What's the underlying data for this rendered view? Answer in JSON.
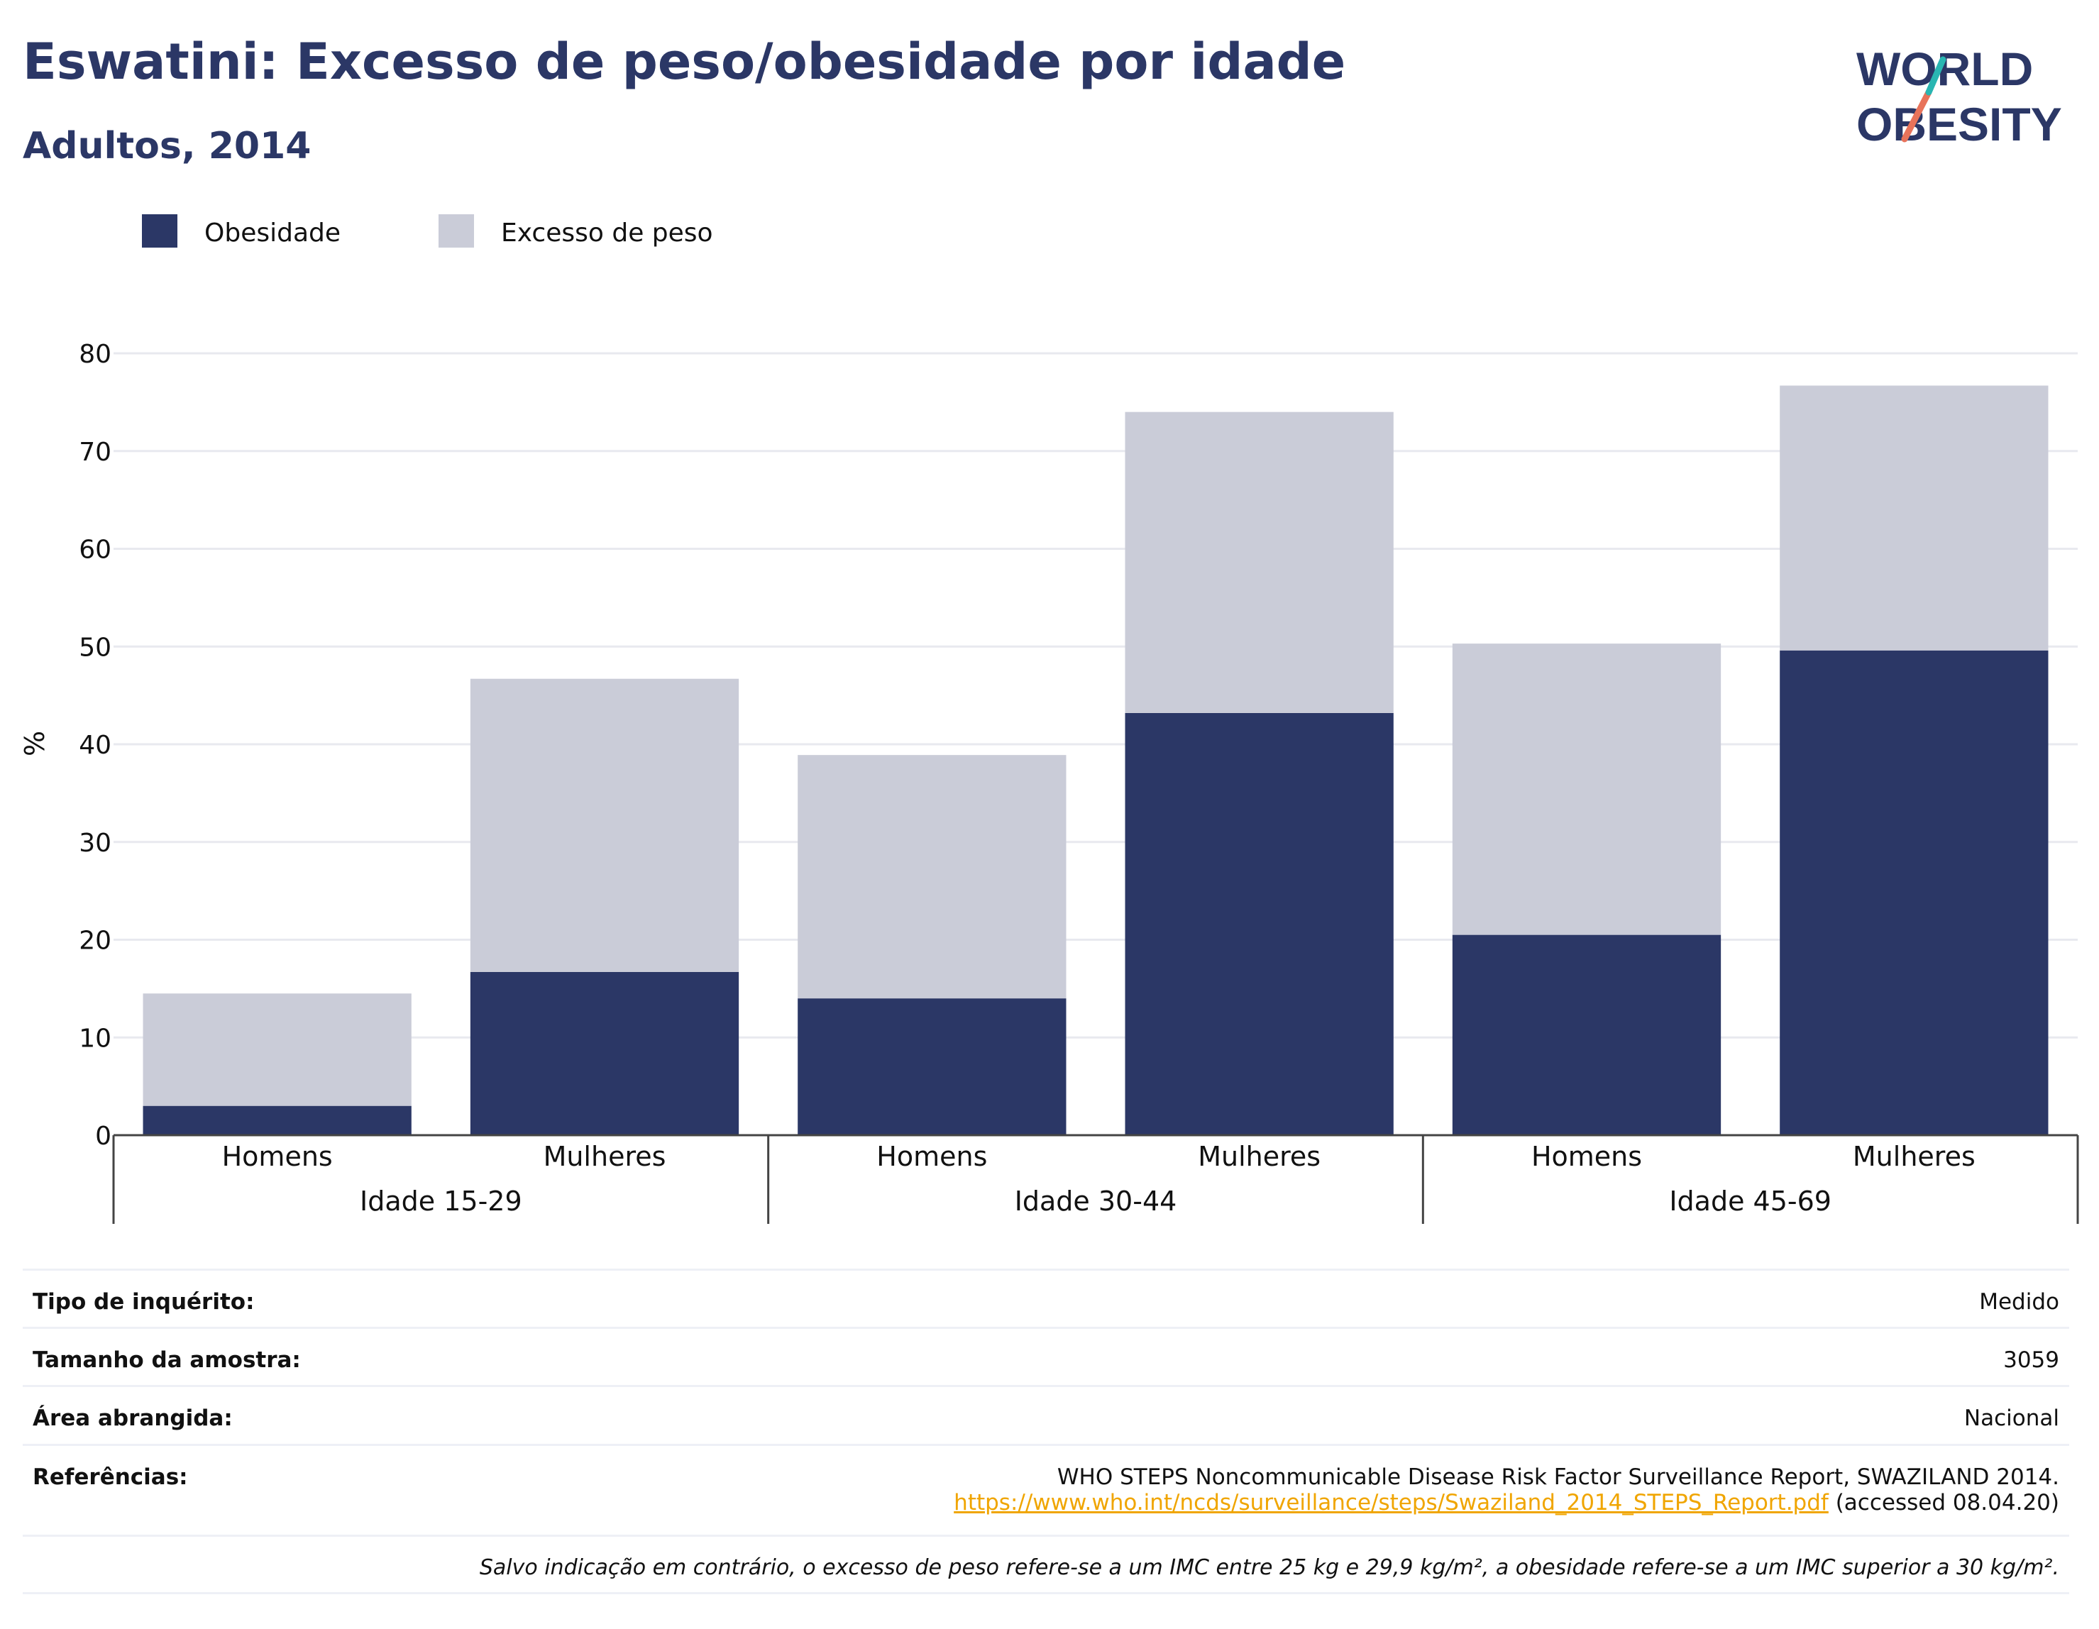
{
  "header": {
    "title": "Eswatini: Excesso de peso/obesidade por idade",
    "subtitle": "Adultos, 2014"
  },
  "logo": {
    "line1": "WORLD",
    "line2": "OBESITY"
  },
  "chart_data": {
    "type": "bar",
    "stacked": true,
    "ylabel": "%",
    "ylim": [
      0,
      80
    ],
    "yticks": [
      0,
      10,
      20,
      30,
      40,
      50,
      60,
      70,
      80
    ],
    "grid": true,
    "legend_position": "top-left",
    "groups": [
      "Idade 15-29",
      "Idade 30-44",
      "Idade 45-69"
    ],
    "categories": [
      "Homens",
      "Mulheres",
      "Homens",
      "Mulheres",
      "Homens",
      "Mulheres"
    ],
    "series": [
      {
        "name": "Obesidade",
        "color": "#2b3766",
        "values": [
          3.0,
          16.7,
          14.0,
          43.2,
          20.5,
          49.6
        ]
      },
      {
        "name": "Excesso de peso",
        "color": "#caccd8",
        "values": [
          11.5,
          30.0,
          24.9,
          30.8,
          29.8,
          27.1
        ]
      }
    ]
  },
  "info": {
    "survey_type_label": "Tipo de inquérito:",
    "survey_type_value": "Medido",
    "sample_size_label": "Tamanho da amostra:",
    "sample_size_value": "3059",
    "area_label": "Área abrangida:",
    "area_value": "Nacional",
    "references_label": "Referências:",
    "reference_text": "WHO STEPS Noncommunicable Disease Risk Factor Surveillance Report, SWAZILAND 2014.",
    "reference_url": "https://www.who.int/ncds/surveillance/steps/Swaziland_2014_STEPS_Report.pdf",
    "reference_accessed": "(accessed 08.04.20)",
    "note": "Salvo indicação em contrário, o excesso de peso refere-se a um IMC entre 25 kg e 29,9 kg/m², a obesidade refere-se a um IMC superior a 30 kg/m²."
  }
}
